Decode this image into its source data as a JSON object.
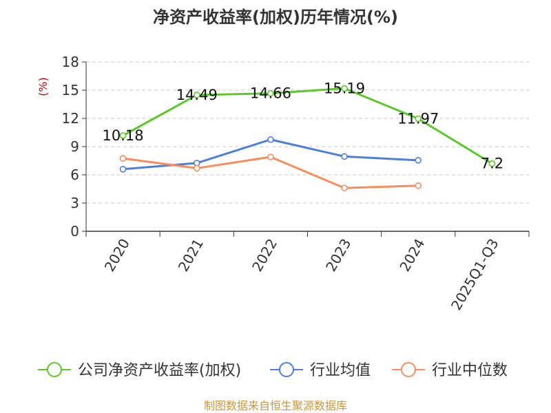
{
  "chart_data": {
    "type": "line",
    "title": "净资产收益率(加权)历年情况(%)",
    "ylabel": "(%)",
    "ylim": [
      0,
      18
    ],
    "yticks": [
      0,
      3,
      6,
      9,
      12,
      15,
      18
    ],
    "grid": "horizontal dashed",
    "legend_position": "bottom",
    "categories": [
      "2020",
      "2021",
      "2022",
      "2023",
      "2024",
      "2025Q1-Q3"
    ],
    "series": [
      {
        "name": "公司净资产收益率(加权)",
        "color": "#5cc72a",
        "values": [
          10.18,
          14.49,
          14.66,
          15.19,
          11.97,
          7.2
        ],
        "labels": [
          "10.18",
          "14.49",
          "14.66",
          "15.19",
          "11.97",
          "7.2"
        ]
      },
      {
        "name": "行业均值",
        "color": "#4e7fd8",
        "values": [
          6.6,
          7.25,
          9.75,
          7.95,
          7.55,
          null
        ]
      },
      {
        "name": "行业中位数",
        "color": "#f58d5c",
        "values": [
          7.75,
          6.7,
          7.9,
          4.6,
          4.85,
          null
        ]
      }
    ]
  },
  "source": "制图数据来自恒生聚源数据库",
  "colors": {
    "title": "#333333",
    "axis": "#333333",
    "ylabel": "#d40000",
    "grid": "#c8c8c8",
    "source": "#c8963c"
  }
}
